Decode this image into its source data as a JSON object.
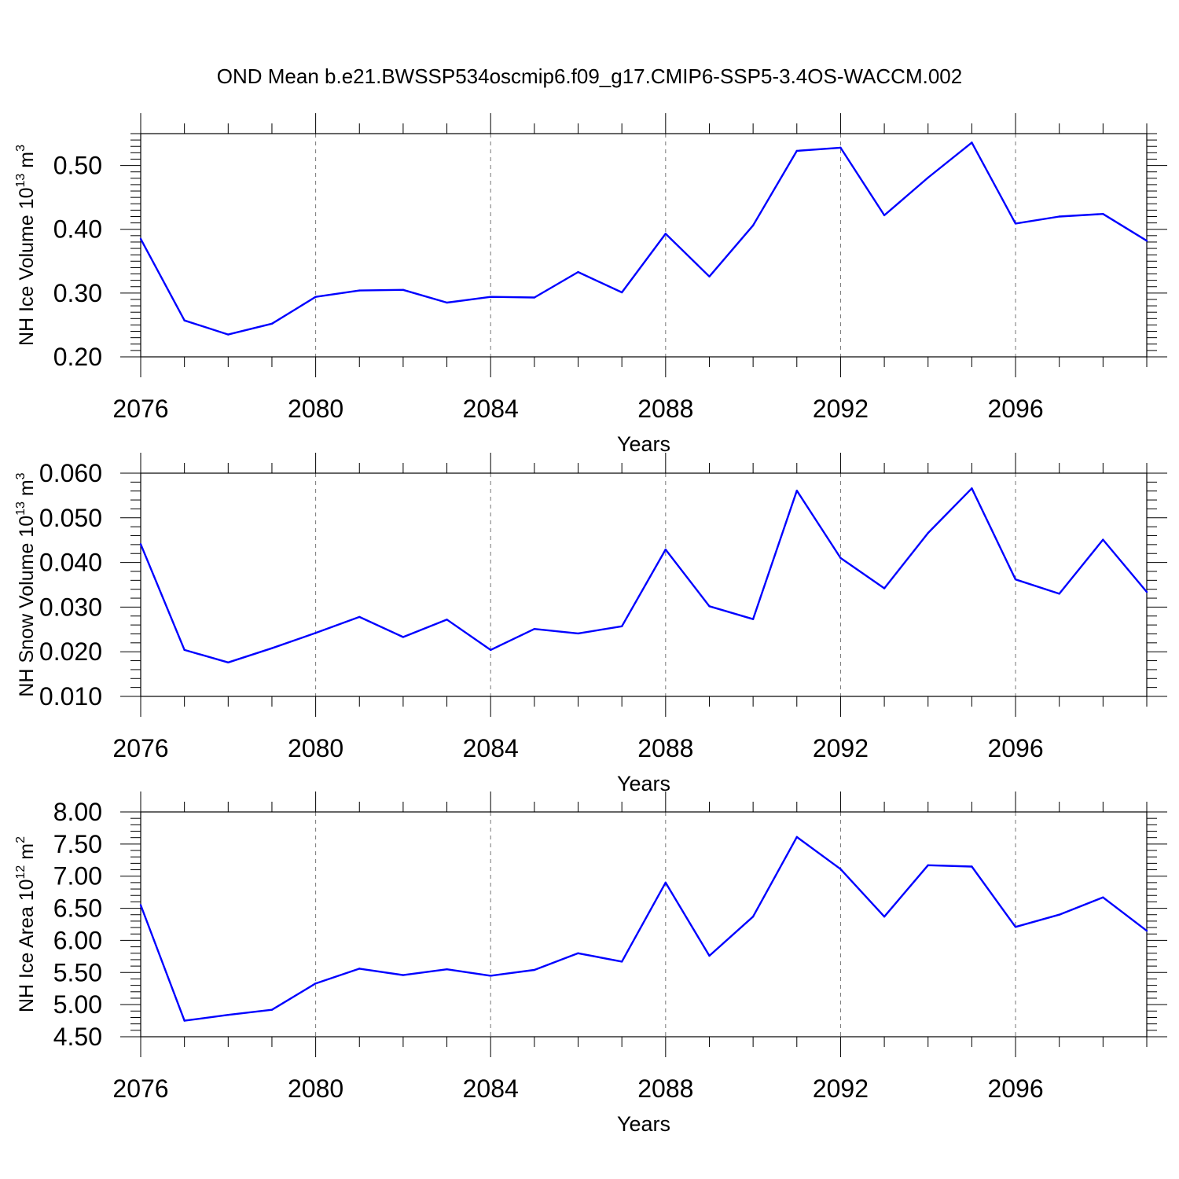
{
  "figure_title": "OND Mean b.e21.BWSSP534oscmip6.f09_g17.CMIP6-SSP5-3.4OS-WACCM.002",
  "line_color": "#0000ff",
  "chart_data": [
    {
      "type": "line",
      "title": "OND Mean b.e21.BWSSP534oscmip6.f09_g17.CMIP6-SSP5-3.4OS-WACCM.002",
      "xlabel": "Years",
      "ylabel": {
        "text": "NH Ice Volume 10",
        "exp": "13",
        "unit": " m",
        "unit_exp": "3"
      },
      "xlim": [
        2076,
        2099
      ],
      "ylim": [
        0.2,
        0.55
      ],
      "xticks": [
        "2076",
        "2080",
        "2084",
        "2088",
        "2092",
        "2096"
      ],
      "yticks": [
        "0.20",
        "0.30",
        "0.40",
        "0.50"
      ],
      "grid": "vertical dashed at major x ticks",
      "series": [
        {
          "name": "NH Ice Volume",
          "x": [
            2076,
            2077,
            2078,
            2079,
            2080,
            2081,
            2082,
            2083,
            2084,
            2085,
            2086,
            2087,
            2088,
            2089,
            2090,
            2091,
            2092,
            2093,
            2094,
            2095,
            2096,
            2097,
            2098,
            2099
          ],
          "values": [
            0.385,
            0.257,
            0.235,
            0.252,
            0.294,
            0.304,
            0.305,
            0.285,
            0.294,
            0.293,
            0.333,
            0.301,
            0.393,
            0.326,
            0.406,
            0.523,
            0.528,
            0.422,
            0.481,
            0.536,
            0.409,
            0.42,
            0.424,
            0.382
          ]
        }
      ]
    },
    {
      "type": "line",
      "title": "",
      "xlabel": "Years",
      "ylabel": {
        "text": "NH Snow Volume 10",
        "exp": "13",
        "unit": " m",
        "unit_exp": "3"
      },
      "xlim": [
        2076,
        2099
      ],
      "ylim": [
        0.01,
        0.06
      ],
      "xticks": [
        "2076",
        "2080",
        "2084",
        "2088",
        "2092",
        "2096"
      ],
      "yticks": [
        "0.010",
        "0.020",
        "0.030",
        "0.040",
        "0.050",
        "0.060"
      ],
      "grid": "vertical dashed at major x ticks",
      "series": [
        {
          "name": "NH Snow Volume",
          "x": [
            2076,
            2077,
            2078,
            2079,
            2080,
            2081,
            2082,
            2083,
            2084,
            2085,
            2086,
            2087,
            2088,
            2089,
            2090,
            2091,
            2092,
            2093,
            2094,
            2095,
            2096,
            2097,
            2098,
            2099
          ],
          "values": [
            0.0441,
            0.0204,
            0.0176,
            0.0208,
            0.0242,
            0.0278,
            0.0233,
            0.0272,
            0.0204,
            0.0251,
            0.0241,
            0.0257,
            0.0429,
            0.0302,
            0.0273,
            0.0561,
            0.041,
            0.0342,
            0.0466,
            0.0566,
            0.0362,
            0.033,
            0.0451,
            0.0334
          ]
        }
      ]
    },
    {
      "type": "line",
      "title": "",
      "xlabel": "Years",
      "ylabel": {
        "text": "NH Ice Area 10",
        "exp": "12",
        "unit": " m",
        "unit_exp": "2"
      },
      "xlim": [
        2076,
        2099
      ],
      "ylim": [
        4.5,
        8.0
      ],
      "xticks": [
        "2076",
        "2080",
        "2084",
        "2088",
        "2092",
        "2096"
      ],
      "yticks": [
        "4.50",
        "5.00",
        "5.50",
        "6.00",
        "6.50",
        "7.00",
        "7.50",
        "8.00"
      ],
      "grid": "vertical dashed at major x ticks",
      "series": [
        {
          "name": "NH Ice Area",
          "x": [
            2076,
            2077,
            2078,
            2079,
            2080,
            2081,
            2082,
            2083,
            2084,
            2085,
            2086,
            2087,
            2088,
            2089,
            2090,
            2091,
            2092,
            2093,
            2094,
            2095,
            2096,
            2097,
            2098,
            2099
          ],
          "values": [
            6.55,
            4.75,
            4.84,
            4.92,
            5.33,
            5.56,
            5.46,
            5.55,
            5.45,
            5.54,
            5.8,
            5.67,
            6.9,
            5.76,
            6.37,
            7.61,
            7.11,
            6.37,
            7.17,
            7.15,
            6.21,
            6.4,
            6.67,
            6.15
          ]
        }
      ]
    }
  ]
}
